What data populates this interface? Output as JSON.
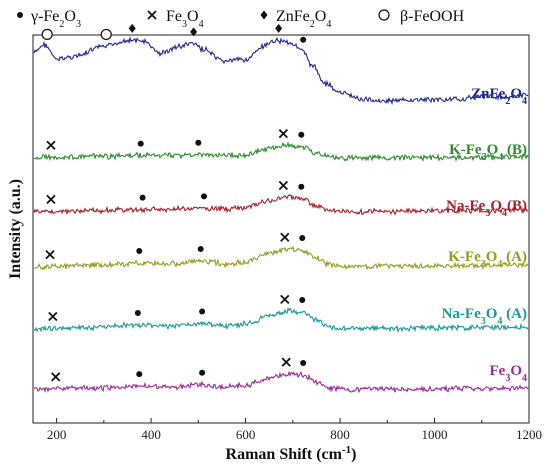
{
  "chart_data": {
    "type": "line",
    "xlabel": "Raman Shift (cm",
    "xlabel_sup": "-1",
    "xlabel_suffix": ")",
    "ylabel": "Intensity (a.u.)",
    "xlim": [
      150,
      1200
    ],
    "xticks": [
      200,
      400,
      600,
      800,
      1000,
      1200
    ],
    "yticks_shown": false,
    "legend": [
      {
        "marker": "dot",
        "text": "γ-Fe2O3"
      },
      {
        "marker": "cross",
        "text": "Fe3O4"
      },
      {
        "marker": "diamond",
        "text": "ZnFe2O4"
      },
      {
        "marker": "circle",
        "text": "β-FeOOH"
      }
    ],
    "legend_placement": "top",
    "series": [
      {
        "name": "ZnFe2O4",
        "color": "#1f2b8a",
        "x": [
          150,
          175,
          200,
          240,
          300,
          350,
          380,
          420,
          460,
          485,
          510,
          550,
          600,
          640,
          665,
          680,
          700,
          720,
          740,
          770,
          800,
          850,
          900,
          950,
          1000,
          1050,
          1100,
          1150,
          1200
        ],
        "y": [
          80,
          90,
          72,
          76,
          88,
          96,
          95,
          80,
          88,
          92,
          85,
          70,
          72,
          88,
          96,
          95,
          92,
          82,
          65,
          42,
          30,
          22,
          20,
          21,
          22,
          22,
          26,
          25,
          27
        ],
        "markers": [
          {
            "type": "circle",
            "x": 180
          },
          {
            "type": "circle",
            "x": 305
          },
          {
            "type": "diamond",
            "x": 360
          },
          {
            "type": "diamond",
            "x": 490
          },
          {
            "type": "diamond",
            "x": 670
          },
          {
            "type": "dot",
            "x": 722
          }
        ]
      },
      {
        "name": "K-Fe3O4 (B)",
        "color": "#2e8b2e",
        "x": [
          150,
          200,
          300,
          380,
          450,
          500,
          550,
          600,
          650,
          690,
          720,
          750,
          780,
          820,
          900,
          1000,
          1100,
          1200
        ],
        "y": [
          12,
          12,
          14,
          16,
          17,
          18,
          16,
          18,
          34,
          42,
          38,
          22,
          12,
          10,
          10,
          11,
          12,
          14
        ],
        "markers": [
          {
            "type": "cross",
            "x": 188
          },
          {
            "type": "dot",
            "x": 378
          },
          {
            "type": "dot",
            "x": 500
          },
          {
            "type": "cross",
            "x": 680
          },
          {
            "type": "dot",
            "x": 718
          }
        ]
      },
      {
        "name": "Na-Fe3O4(B)",
        "color": "#a0222a",
        "x": [
          150,
          200,
          300,
          380,
          450,
          500,
          550,
          600,
          650,
          690,
          720,
          750,
          780,
          820,
          900,
          1000,
          1100,
          1200
        ],
        "y": [
          8,
          8,
          10,
          12,
          13,
          15,
          13,
          16,
          32,
          40,
          36,
          20,
          10,
          8,
          8,
          9,
          10,
          12
        ],
        "markers": [
          {
            "type": "cross",
            "x": 188
          },
          {
            "type": "dot",
            "x": 382
          },
          {
            "type": "dot",
            "x": 512
          },
          {
            "type": "cross",
            "x": 680
          },
          {
            "type": "dot",
            "x": 718
          }
        ]
      },
      {
        "name": "K-Fe3O4 (A)",
        "color": "#9a9a1f",
        "x": [
          150,
          200,
          300,
          375,
          450,
          505,
          560,
          600,
          650,
          690,
          720,
          750,
          780,
          820,
          900,
          1000,
          1100,
          1200
        ],
        "y": [
          6,
          7,
          10,
          14,
          12,
          18,
          12,
          16,
          34,
          42,
          40,
          24,
          10,
          7,
          7,
          8,
          9,
          10
        ],
        "markers": [
          {
            "type": "cross",
            "x": 186
          },
          {
            "type": "dot",
            "x": 375
          },
          {
            "type": "dot",
            "x": 505
          },
          {
            "type": "cross",
            "x": 683
          },
          {
            "type": "dot",
            "x": 720
          }
        ]
      },
      {
        "name": "Na-Fe3O4 (A)",
        "color": "#1a9a98",
        "x": [
          150,
          200,
          300,
          370,
          450,
          505,
          560,
          600,
          650,
          690,
          720,
          750,
          780,
          820,
          900,
          1000,
          1100,
          1200
        ],
        "y": [
          6,
          7,
          10,
          14,
          12,
          17,
          12,
          16,
          32,
          42,
          40,
          24,
          10,
          7,
          7,
          8,
          9,
          10
        ],
        "markers": [
          {
            "type": "cross",
            "x": 192
          },
          {
            "type": "dot",
            "x": 372
          },
          {
            "type": "dot",
            "x": 508
          },
          {
            "type": "cross",
            "x": 683
          },
          {
            "type": "dot",
            "x": 720
          }
        ]
      },
      {
        "name": "Fe3O4",
        "color": "#9a2a9a",
        "x": [
          150,
          200,
          300,
          375,
          450,
          508,
          560,
          600,
          650,
          690,
          720,
          750,
          780,
          820,
          900,
          1000,
          1100,
          1200
        ],
        "y": [
          6,
          7,
          9,
          13,
          11,
          16,
          11,
          15,
          30,
          40,
          38,
          22,
          9,
          6,
          6,
          7,
          8,
          9
        ],
        "markers": [
          {
            "type": "cross",
            "x": 198
          },
          {
            "type": "dot",
            "x": 375
          },
          {
            "type": "dot",
            "x": 508
          },
          {
            "type": "cross",
            "x": 686
          },
          {
            "type": "dot",
            "x": 722
          }
        ]
      }
    ]
  },
  "labels": {
    "legend_1": "γ-Fe",
    "legend_2": "Fe",
    "legend_3": "ZnFe",
    "legend_4": "β-FeOOH"
  }
}
